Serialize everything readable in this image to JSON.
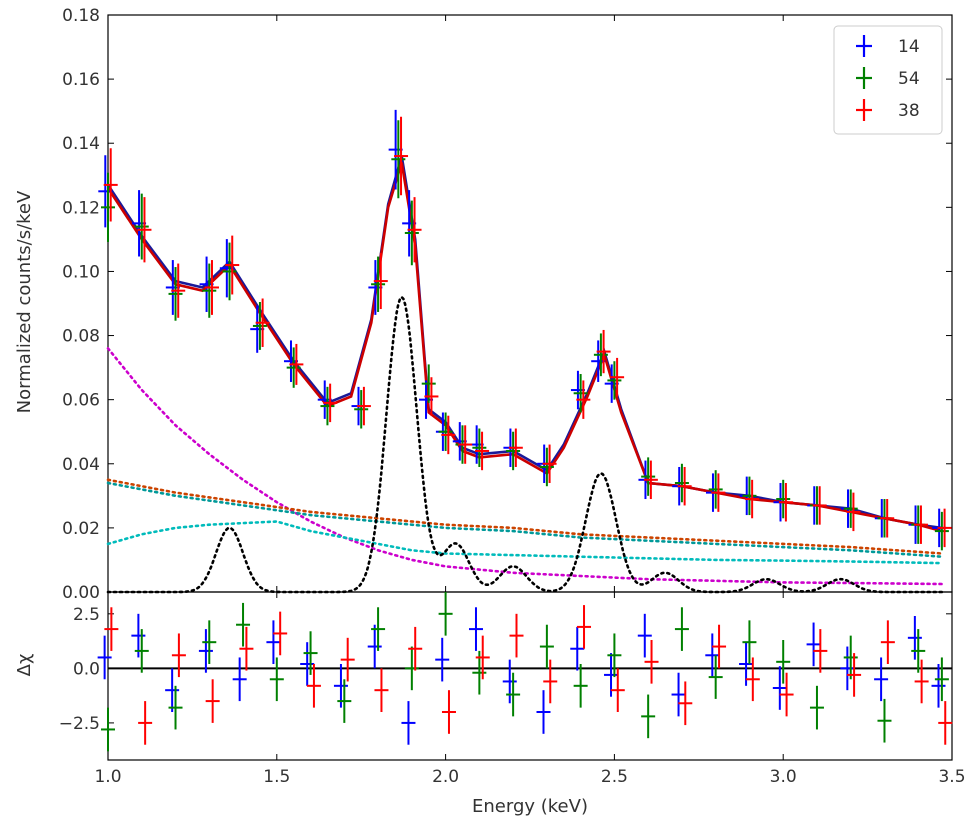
{
  "chart_data": [
    {
      "type": "scatter",
      "panel": "spectrum",
      "title": "",
      "xlabel": "Energy (keV)",
      "ylabel": "Normalized counts/s/keV",
      "xlim": [
        1.0,
        3.5
      ],
      "ylim": [
        0.0,
        0.18
      ],
      "x_scale": "linear",
      "y_ticks": [
        0.0,
        0.02,
        0.04,
        0.06,
        0.08,
        0.1,
        0.12,
        0.14,
        0.16,
        0.18
      ],
      "y_tick_labels": [
        "0.00",
        "0.02",
        "0.04",
        "0.06",
        "0.08",
        "0.10",
        "0.12",
        "0.14",
        "0.16",
        "0.18"
      ],
      "legend": {
        "position": "top-right",
        "entries": [
          "14",
          "54",
          "38"
        ]
      },
      "series": [
        {
          "name": "14",
          "color": "#0000ff",
          "marker": "crosses with error bars",
          "x": [
            1.0,
            1.1,
            1.2,
            1.3,
            1.36,
            1.45,
            1.55,
            1.65,
            1.75,
            1.8,
            1.86,
            1.9,
            1.95,
            2.0,
            2.05,
            2.1,
            2.2,
            2.3,
            2.4,
            2.46,
            2.5,
            2.6,
            2.7,
            2.8,
            2.9,
            3.0,
            3.1,
            3.2,
            3.3,
            3.4,
            3.47
          ],
          "values": [
            0.125,
            0.115,
            0.095,
            0.096,
            0.101,
            0.082,
            0.072,
            0.06,
            0.058,
            0.095,
            0.138,
            0.115,
            0.06,
            0.05,
            0.047,
            0.046,
            0.045,
            0.04,
            0.063,
            0.072,
            0.065,
            0.035,
            0.033,
            0.031,
            0.03,
            0.028,
            0.027,
            0.026,
            0.023,
            0.021,
            0.02
          ]
        },
        {
          "name": "54",
          "color": "#008000",
          "marker": "crosses with error bars",
          "x": [
            1.0,
            1.1,
            1.2,
            1.3,
            1.36,
            1.45,
            1.55,
            1.65,
            1.75,
            1.8,
            1.86,
            1.9,
            1.95,
            2.0,
            2.05,
            2.1,
            2.2,
            2.3,
            2.4,
            2.46,
            2.5,
            2.6,
            2.7,
            2.8,
            2.9,
            3.0,
            3.1,
            3.2,
            3.3,
            3.4,
            3.47
          ],
          "values": [
            0.12,
            0.114,
            0.093,
            0.094,
            0.1,
            0.083,
            0.07,
            0.058,
            0.057,
            0.096,
            0.135,
            0.112,
            0.065,
            0.05,
            0.046,
            0.045,
            0.044,
            0.039,
            0.062,
            0.074,
            0.066,
            0.036,
            0.034,
            0.032,
            0.03,
            0.029,
            0.027,
            0.026,
            0.023,
            0.021,
            0.019
          ]
        },
        {
          "name": "38",
          "color": "#ff0000",
          "marker": "crosses with error bars",
          "x": [
            1.0,
            1.1,
            1.2,
            1.3,
            1.36,
            1.45,
            1.55,
            1.65,
            1.75,
            1.8,
            1.86,
            1.9,
            1.95,
            2.0,
            2.05,
            2.1,
            2.2,
            2.3,
            2.4,
            2.46,
            2.5,
            2.6,
            2.7,
            2.8,
            2.9,
            3.0,
            3.1,
            3.2,
            3.3,
            3.4,
            3.47
          ],
          "values": [
            0.127,
            0.113,
            0.094,
            0.095,
            0.102,
            0.084,
            0.071,
            0.059,
            0.058,
            0.097,
            0.136,
            0.113,
            0.061,
            0.049,
            0.046,
            0.044,
            0.045,
            0.04,
            0.06,
            0.075,
            0.067,
            0.035,
            0.033,
            0.031,
            0.029,
            0.028,
            0.027,
            0.025,
            0.023,
            0.021,
            0.02
          ]
        }
      ],
      "model_curves": [
        {
          "color": "#1a1a99",
          "style": "solid",
          "x": [
            1.0,
            1.1,
            1.2,
            1.28,
            1.36,
            1.45,
            1.55,
            1.65,
            1.72,
            1.78,
            1.83,
            1.87,
            1.91,
            1.95,
            2.0,
            2.05,
            2.1,
            2.2,
            2.3,
            2.35,
            2.42,
            2.47,
            2.52,
            2.6,
            2.7,
            2.8,
            2.9,
            3.0,
            3.1,
            3.2,
            3.3,
            3.4,
            3.47
          ],
          "values": [
            0.127,
            0.111,
            0.097,
            0.095,
            0.103,
            0.088,
            0.072,
            0.059,
            0.062,
            0.085,
            0.121,
            0.136,
            0.11,
            0.057,
            0.053,
            0.045,
            0.043,
            0.044,
            0.038,
            0.046,
            0.062,
            0.075,
            0.057,
            0.034,
            0.033,
            0.031,
            0.03,
            0.028,
            0.027,
            0.026,
            0.023,
            0.021,
            0.02
          ]
        },
        {
          "color": "#cc0000",
          "style": "solid",
          "x": [
            1.0,
            1.1,
            1.2,
            1.28,
            1.36,
            1.45,
            1.55,
            1.65,
            1.72,
            1.78,
            1.83,
            1.87,
            1.91,
            1.95,
            2.0,
            2.05,
            2.1,
            2.2,
            2.3,
            2.35,
            2.42,
            2.47,
            2.52,
            2.6,
            2.7,
            2.8,
            2.9,
            3.0,
            3.1,
            3.2,
            3.3,
            3.4,
            3.47
          ],
          "values": [
            0.126,
            0.11,
            0.096,
            0.094,
            0.102,
            0.087,
            0.071,
            0.058,
            0.061,
            0.084,
            0.12,
            0.134,
            0.108,
            0.056,
            0.052,
            0.044,
            0.042,
            0.043,
            0.037,
            0.045,
            0.061,
            0.074,
            0.056,
            0.034,
            0.033,
            0.031,
            0.029,
            0.028,
            0.027,
            0.025,
            0.023,
            0.021,
            0.019
          ]
        },
        {
          "color": "#cc00cc",
          "style": "dotted",
          "x": [
            1.0,
            1.1,
            1.2,
            1.3,
            1.4,
            1.5,
            1.6,
            1.7,
            1.8,
            1.9,
            2.0,
            2.2,
            2.4,
            2.6,
            2.8,
            3.0,
            3.2,
            3.47
          ],
          "values": [
            0.076,
            0.063,
            0.052,
            0.043,
            0.035,
            0.028,
            0.022,
            0.017,
            0.013,
            0.01,
            0.008,
            0.006,
            0.005,
            0.004,
            0.0035,
            0.003,
            0.0028,
            0.0025
          ]
        },
        {
          "color": "#00bbbb",
          "style": "dotted",
          "x": [
            1.0,
            1.1,
            1.2,
            1.3,
            1.4,
            1.5,
            1.6,
            1.7,
            1.8,
            1.9,
            2.0,
            2.2,
            2.4,
            2.6,
            2.8,
            3.0,
            3.2,
            3.47
          ],
          "values": [
            0.015,
            0.018,
            0.02,
            0.021,
            0.0215,
            0.022,
            0.019,
            0.017,
            0.015,
            0.013,
            0.012,
            0.0115,
            0.011,
            0.0105,
            0.01,
            0.0098,
            0.0095,
            0.009
          ]
        },
        {
          "color": "#cc4400",
          "style": "dotted",
          "x": [
            1.0,
            1.2,
            1.4,
            1.6,
            1.8,
            2.0,
            2.2,
            2.4,
            2.6,
            2.8,
            3.0,
            3.2,
            3.47
          ],
          "values": [
            0.035,
            0.031,
            0.028,
            0.025,
            0.023,
            0.021,
            0.02,
            0.018,
            0.017,
            0.016,
            0.015,
            0.014,
            0.012
          ]
        },
        {
          "color": "#009999",
          "style": "dotted",
          "x": [
            1.0,
            1.2,
            1.4,
            1.6,
            1.8,
            2.0,
            2.2,
            2.4,
            2.6,
            2.8,
            3.0,
            3.2,
            3.47
          ],
          "values": [
            0.034,
            0.03,
            0.027,
            0.024,
            0.022,
            0.02,
            0.019,
            0.017,
            0.016,
            0.015,
            0.014,
            0.013,
            0.011
          ]
        },
        {
          "color": "#000000",
          "style": "dotted",
          "gaussians": [
            {
              "center": 1.36,
              "amp": 0.02,
              "sigma": 0.04
            },
            {
              "center": 1.87,
              "amp": 0.092,
              "sigma": 0.045
            },
            {
              "center": 2.03,
              "amp": 0.015,
              "sigma": 0.04
            },
            {
              "center": 2.2,
              "amp": 0.008,
              "sigma": 0.04
            },
            {
              "center": 2.46,
              "amp": 0.037,
              "sigma": 0.045
            },
            {
              "center": 2.65,
              "amp": 0.006,
              "sigma": 0.04
            },
            {
              "center": 2.95,
              "amp": 0.004,
              "sigma": 0.04
            },
            {
              "center": 3.17,
              "amp": 0.004,
              "sigma": 0.04
            }
          ]
        }
      ]
    },
    {
      "type": "scatter",
      "panel": "residuals",
      "xlabel": "Energy (keV)",
      "ylabel": "Δχ",
      "xlim": [
        1.0,
        3.5
      ],
      "ylim": [
        -4.2,
        3.5
      ],
      "x_ticks": [
        1.0,
        1.5,
        2.0,
        2.5,
        3.0,
        3.5
      ],
      "x_tick_labels": [
        "1.0",
        "1.5",
        "2.0",
        "2.5",
        "3.0",
        "3.5"
      ],
      "y_ticks": [
        -2.5,
        0.0,
        2.5
      ],
      "y_tick_labels": [
        "−2.5",
        "0.0",
        "2.5"
      ],
      "zero_line": 0.0,
      "series": [
        {
          "name": "14",
          "color": "#0000ff",
          "x": [
            1.0,
            1.1,
            1.2,
            1.3,
            1.4,
            1.5,
            1.6,
            1.7,
            1.8,
            1.9,
            2.0,
            2.1,
            2.2,
            2.3,
            2.4,
            2.5,
            2.6,
            2.7,
            2.8,
            2.9,
            3.0,
            3.1,
            3.2,
            3.3,
            3.4,
            3.47
          ],
          "values": [
            0.5,
            1.5,
            -1.0,
            0.8,
            -0.5,
            1.2,
            0.2,
            -0.8,
            1.0,
            -2.5,
            0.4,
            1.8,
            -0.6,
            -2.0,
            0.9,
            -0.3,
            1.5,
            -1.2,
            0.6,
            0.2,
            -0.9,
            1.1,
            0.0,
            -0.5,
            1.4,
            -0.8
          ]
        },
        {
          "name": "54",
          "color": "#008000",
          "x": [
            1.0,
            1.1,
            1.2,
            1.3,
            1.4,
            1.5,
            1.6,
            1.7,
            1.8,
            1.9,
            2.0,
            2.1,
            2.2,
            2.3,
            2.4,
            2.5,
            2.6,
            2.7,
            2.8,
            2.9,
            3.0,
            3.1,
            3.2,
            3.3,
            3.4,
            3.47
          ],
          "values": [
            -2.8,
            0.8,
            -1.8,
            1.2,
            2.0,
            -0.5,
            0.7,
            -1.5,
            1.8,
            0.0,
            2.5,
            -0.2,
            -1.2,
            1.0,
            -0.8,
            0.6,
            -2.2,
            1.8,
            -0.4,
            1.2,
            0.3,
            -1.8,
            0.5,
            -2.4,
            0.8,
            -0.5
          ]
        },
        {
          "name": "38",
          "color": "#ff0000",
          "x": [
            1.0,
            1.1,
            1.2,
            1.3,
            1.4,
            1.5,
            1.6,
            1.7,
            1.8,
            1.9,
            2.0,
            2.1,
            2.2,
            2.3,
            2.4,
            2.5,
            2.6,
            2.7,
            2.8,
            2.9,
            3.0,
            3.1,
            3.2,
            3.3,
            3.4,
            3.47
          ],
          "values": [
            1.8,
            -2.5,
            0.6,
            -1.5,
            0.9,
            1.6,
            -0.8,
            0.4,
            -1.0,
            0.9,
            -2.0,
            0.5,
            1.5,
            -0.6,
            1.9,
            -1.0,
            0.3,
            -1.6,
            1.0,
            -0.5,
            -1.2,
            0.8,
            -0.3,
            1.2,
            -0.6,
            -2.5
          ]
        }
      ]
    }
  ]
}
